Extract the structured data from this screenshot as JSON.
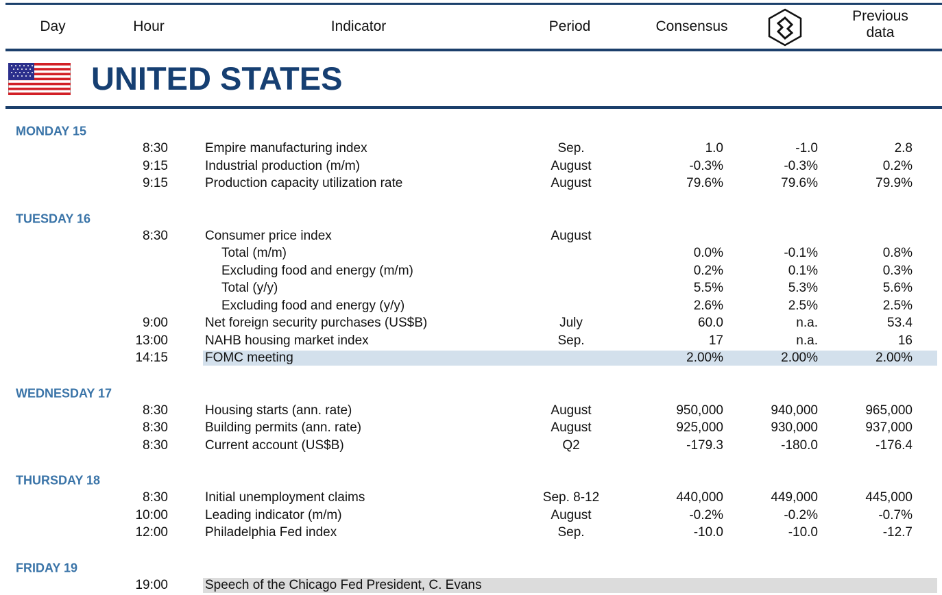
{
  "header": {
    "day": "Day",
    "hour": "Hour",
    "indicator": "Indicator",
    "period": "Period",
    "consensus": "Consensus",
    "previous": "Previous data"
  },
  "country": "UNITED STATES",
  "days": [
    {
      "label": "MONDAY 15",
      "rows": [
        {
          "hour": "8:30",
          "indicator": "Empire manufacturing index",
          "period": "Sep.",
          "consensus": "1.0",
          "forecast": "-1.0",
          "previous": "2.8"
        },
        {
          "hour": "9:15",
          "indicator": "Industrial production (m/m)",
          "period": "August",
          "consensus": "-0.3%",
          "forecast": "-0.3%",
          "previous": "0.2%"
        },
        {
          "hour": "9:15",
          "indicator": "Production capacity utilization rate",
          "period": "August",
          "consensus": "79.6%",
          "forecast": "79.6%",
          "previous": "79.9%"
        }
      ]
    },
    {
      "label": "TUESDAY 16",
      "rows": [
        {
          "hour": "8:30",
          "indicator": "Consumer price index",
          "period": "August"
        },
        {
          "indicator": "Total (m/m)",
          "indent": true,
          "consensus": "0.0%",
          "forecast": "-0.1%",
          "previous": "0.8%"
        },
        {
          "indicator": "Excluding food and energy (m/m)",
          "indent": true,
          "consensus": "0.2%",
          "forecast": "0.1%",
          "previous": "0.3%"
        },
        {
          "indicator": "Total (y/y)",
          "indent": true,
          "consensus": "5.5%",
          "forecast": "5.3%",
          "previous": "5.6%"
        },
        {
          "indicator": "Excluding food and energy (y/y)",
          "indent": true,
          "consensus": "2.6%",
          "forecast": "2.5%",
          "previous": "2.5%"
        },
        {
          "hour": "9:00",
          "indicator": "Net foreign security purchases (US$B)",
          "period": "July",
          "consensus": "60.0",
          "forecast": "n.a.",
          "previous": "53.4"
        },
        {
          "hour": "13:00",
          "indicator": "NAHB housing market index",
          "period": "Sep.",
          "consensus": "17",
          "forecast": "n.a.",
          "previous": "16"
        },
        {
          "hour": "14:15",
          "indicator": "FOMC meeting",
          "consensus": "2.00%",
          "forecast": "2.00%",
          "previous": "2.00%",
          "highlight": "#d3e0ec"
        }
      ]
    },
    {
      "label": "WEDNESDAY 17",
      "rows": [
        {
          "hour": "8:30",
          "indicator": "Housing starts (ann. rate)",
          "period": "August",
          "consensus": "950,000",
          "forecast": "940,000",
          "previous": "965,000"
        },
        {
          "hour": "8:30",
          "indicator": "Building permits (ann. rate)",
          "period": "August",
          "consensus": "925,000",
          "forecast": "930,000",
          "previous": "937,000"
        },
        {
          "hour": "8:30",
          "indicator": "Current account (US$B)",
          "period": "Q2",
          "consensus": "-179.3",
          "forecast": "-180.0",
          "previous": "-176.4"
        }
      ]
    },
    {
      "label": "THURSDAY 18",
      "rows": [
        {
          "hour": "8:30",
          "indicator": "Initial unemployment claims",
          "period": "Sep. 8-12",
          "consensus": "440,000",
          "forecast": "449,000",
          "previous": "445,000"
        },
        {
          "hour": "10:00",
          "indicator": "Leading indicator (m/m)",
          "period": "August",
          "consensus": "-0.2%",
          "forecast": "-0.2%",
          "previous": "-0.7%"
        },
        {
          "hour": "12:00",
          "indicator": "Philadelphia Fed index",
          "period": "Sep.",
          "consensus": "-10.0",
          "forecast": "-10.0",
          "previous": "-12.7"
        }
      ]
    },
    {
      "label": "FRIDAY 19",
      "rows": [
        {
          "hour": "19:00",
          "indicator": "Speech of the Chicago Fed President, C. Evans",
          "highlight": "#dcdcdc"
        }
      ]
    }
  ]
}
